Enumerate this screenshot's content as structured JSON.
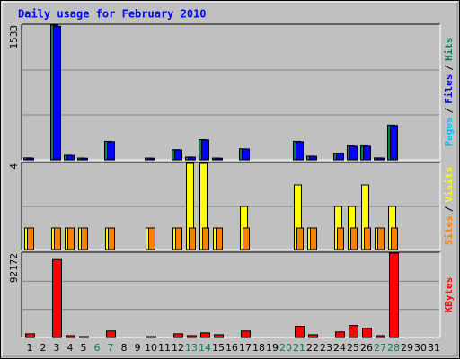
{
  "chart_data": [
    {
      "type": "bar",
      "title": "Daily usage for February 2010",
      "categories": [
        "1",
        "2",
        "3",
        "4",
        "5",
        "6",
        "7",
        "8",
        "9",
        "10",
        "11",
        "12",
        "13",
        "14",
        "15",
        "16",
        "17",
        "18",
        "19",
        "20",
        "21",
        "22",
        "23",
        "24",
        "25",
        "26",
        "27",
        "28",
        "29",
        "30",
        "31"
      ],
      "category_colors": [
        "#000000",
        "#000000",
        "#000000",
        "#000000",
        "#000000",
        "#00805C",
        "#00805C",
        "#000000",
        "#000000",
        "#000000",
        "#000000",
        "#000000",
        "#00805C",
        "#00805C",
        "#000000",
        "#000000",
        "#000000",
        "#000000",
        "#000000",
        "#00805C",
        "#00805C",
        "#000000",
        "#000000",
        "#000000",
        "#000000",
        "#000000",
        "#00805C",
        "#00805C",
        "#000000",
        "#000000",
        "#000000"
      ],
      "legend_separator": "/",
      "ylim": [
        0,
        1533
      ],
      "yticks": [
        1533
      ],
      "gridlines": [
        511,
        1022
      ],
      "series": [
        {
          "name": "Hits",
          "color": "#00805C",
          "values": [
            22,
            0,
            1533,
            52,
            20,
            0,
            210,
            0,
            0,
            20,
            0,
            115,
            32,
            230,
            20,
            0,
            125,
            0,
            0,
            0,
            210,
            42,
            0,
            74,
            158,
            158,
            22,
            395,
            null,
            null,
            null
          ]
        },
        {
          "name": "Files",
          "color": "#0000FF",
          "values": [
            20,
            0,
            1520,
            50,
            18,
            0,
            206,
            0,
            0,
            18,
            0,
            113,
            30,
            226,
            18,
            0,
            123,
            0,
            0,
            0,
            206,
            40,
            0,
            72,
            154,
            154,
            20,
            391,
            null,
            null,
            null
          ]
        },
        {
          "name": "Pages",
          "color": "#00C0FF",
          "values": [
            2,
            0,
            8,
            3,
            2,
            0,
            6,
            0,
            0,
            2,
            0,
            4,
            3,
            6,
            2,
            0,
            4,
            0,
            0,
            0,
            6,
            3,
            0,
            3,
            5,
            5,
            2,
            20,
            null,
            null,
            null
          ]
        }
      ]
    },
    {
      "type": "bar",
      "ylim": [
        0,
        4
      ],
      "yticks": [
        4
      ],
      "gridlines": [
        2
      ],
      "series": [
        {
          "name": "Visits",
          "color": "#FFFF00",
          "values": [
            1,
            0,
            1,
            1,
            1,
            0,
            1,
            0,
            0,
            1,
            0,
            1,
            4,
            4,
            1,
            0,
            2,
            0,
            0,
            0,
            3,
            1,
            0,
            2,
            2,
            3,
            1,
            2,
            null,
            null,
            null
          ]
        },
        {
          "name": "Sites",
          "color": "#FF8000",
          "values": [
            1,
            0,
            1,
            1,
            1,
            0,
            1,
            0,
            0,
            1,
            0,
            1,
            1,
            1,
            1,
            0,
            1,
            0,
            0,
            0,
            1,
            1,
            0,
            1,
            1,
            1,
            1,
            1,
            null,
            null,
            null
          ]
        }
      ]
    },
    {
      "type": "bar",
      "ylim": [
        0,
        92172
      ],
      "yticks": [
        92172
      ],
      "gridlines": [
        30724,
        61448
      ],
      "series": [
        {
          "name": "KBytes",
          "color": "#FF0000",
          "values": [
            4050,
            0,
            85080,
            2030,
            1010,
            0,
            7090,
            0,
            0,
            1010,
            0,
            4050,
            2030,
            5060,
            3040,
            0,
            7090,
            0,
            0,
            0,
            12150,
            3040,
            0,
            6080,
            13170,
            10130,
            2030,
            92172,
            null,
            null,
            null
          ]
        }
      ]
    }
  ]
}
